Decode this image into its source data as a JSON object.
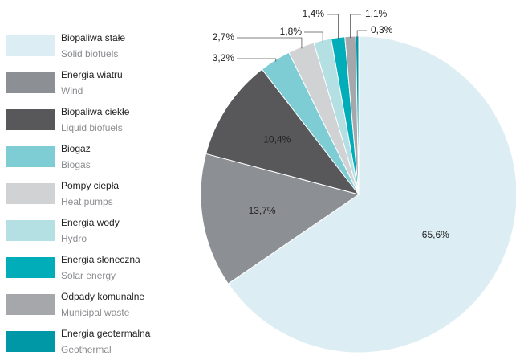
{
  "chart_data": {
    "type": "pie",
    "categories": [
      "Biopaliwa stałe",
      "Energia wiatru",
      "Biopaliwa ciekłe",
      "Biogaz",
      "Pompy ciepła",
      "Energia wody",
      "Energia słoneczna",
      "Odpady komunalne",
      "Energia geotermalna"
    ],
    "categories_en": [
      "Solid biofuels",
      "Wind",
      "Liquid biofuels",
      "Biogas",
      "Heat pumps",
      "Hydro",
      "Solar energy",
      "Municipal waste",
      "Geothermal"
    ],
    "values": [
      65.6,
      13.7,
      10.4,
      3.2,
      2.7,
      1.8,
      1.4,
      1.1,
      0.3
    ],
    "value_labels": [
      "65,6%",
      "13,7%",
      "10,4%",
      "3,2%",
      "2,7%",
      "1,8%",
      "1,4%",
      "1,1%",
      "0,3%"
    ],
    "colors": [
      "#dceef3",
      "#8c8f93",
      "#58585b",
      "#7ecdd4",
      "#d1d2d4",
      "#b4e0e4",
      "#00adb9",
      "#a5a7aa",
      "#0097a7"
    ]
  }
}
